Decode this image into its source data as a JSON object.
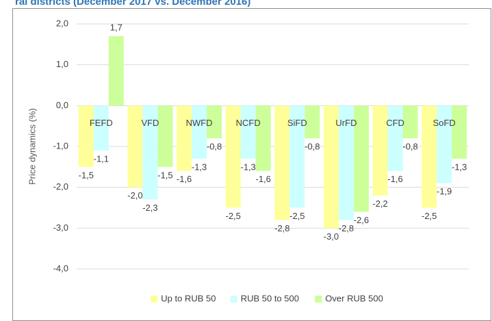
{
  "chart_data": {
    "type": "bar",
    "title": "ral districts (December 2017 vs. December 2016)",
    "y_label": "Price dynamics (%)",
    "categories": [
      "FEFD",
      "VFD",
      "NWFD",
      "NCFD",
      "SiFD",
      "UrFD",
      "CFD",
      "SoFD"
    ],
    "series": [
      {
        "name": "Up to RUB 50",
        "color": "#ffff99",
        "values": [
          -1.5,
          -2.0,
          -1.6,
          -2.5,
          -2.8,
          -3.0,
          -2.2,
          -2.5
        ],
        "value_labels": [
          "-1,5",
          "-2,0",
          "-1,6",
          "-2,5",
          "-2,8",
          "-3,0",
          "-2,2",
          "-2,5"
        ]
      },
      {
        "name": "RUB 50 to 500",
        "color": "#ccffff",
        "values": [
          -1.1,
          -2.3,
          -1.3,
          -1.3,
          -2.5,
          -2.8,
          -1.6,
          -1.9
        ],
        "value_labels": [
          "-1,1",
          "-2,3",
          "-1,3",
          "-1,3",
          "-2,5",
          "-2,8",
          "-1,6",
          "-1,9"
        ]
      },
      {
        "name": "Over RUB 500",
        "color": "#ccff99",
        "values": [
          1.7,
          -1.5,
          -0.8,
          -1.6,
          -0.8,
          -2.6,
          -0.8,
          -1.3
        ],
        "value_labels": [
          "1,7",
          "-1,5",
          "-0,8",
          "-1,6",
          "-0,8",
          "-2,6",
          "-0,8",
          "-1,3"
        ]
      }
    ],
    "ylim": [
      -4,
      2
    ],
    "yticks": [
      {
        "value": -4,
        "label": "-4,0"
      },
      {
        "value": -3,
        "label": "-3,0"
      },
      {
        "value": -2,
        "label": "-2,0"
      },
      {
        "value": -1,
        "label": "-1,0"
      },
      {
        "value": 0,
        "label": "0,0"
      },
      {
        "value": 1,
        "label": "1,0"
      },
      {
        "value": 2,
        "label": "2,0"
      }
    ],
    "grid": true,
    "legend": "bottom"
  }
}
